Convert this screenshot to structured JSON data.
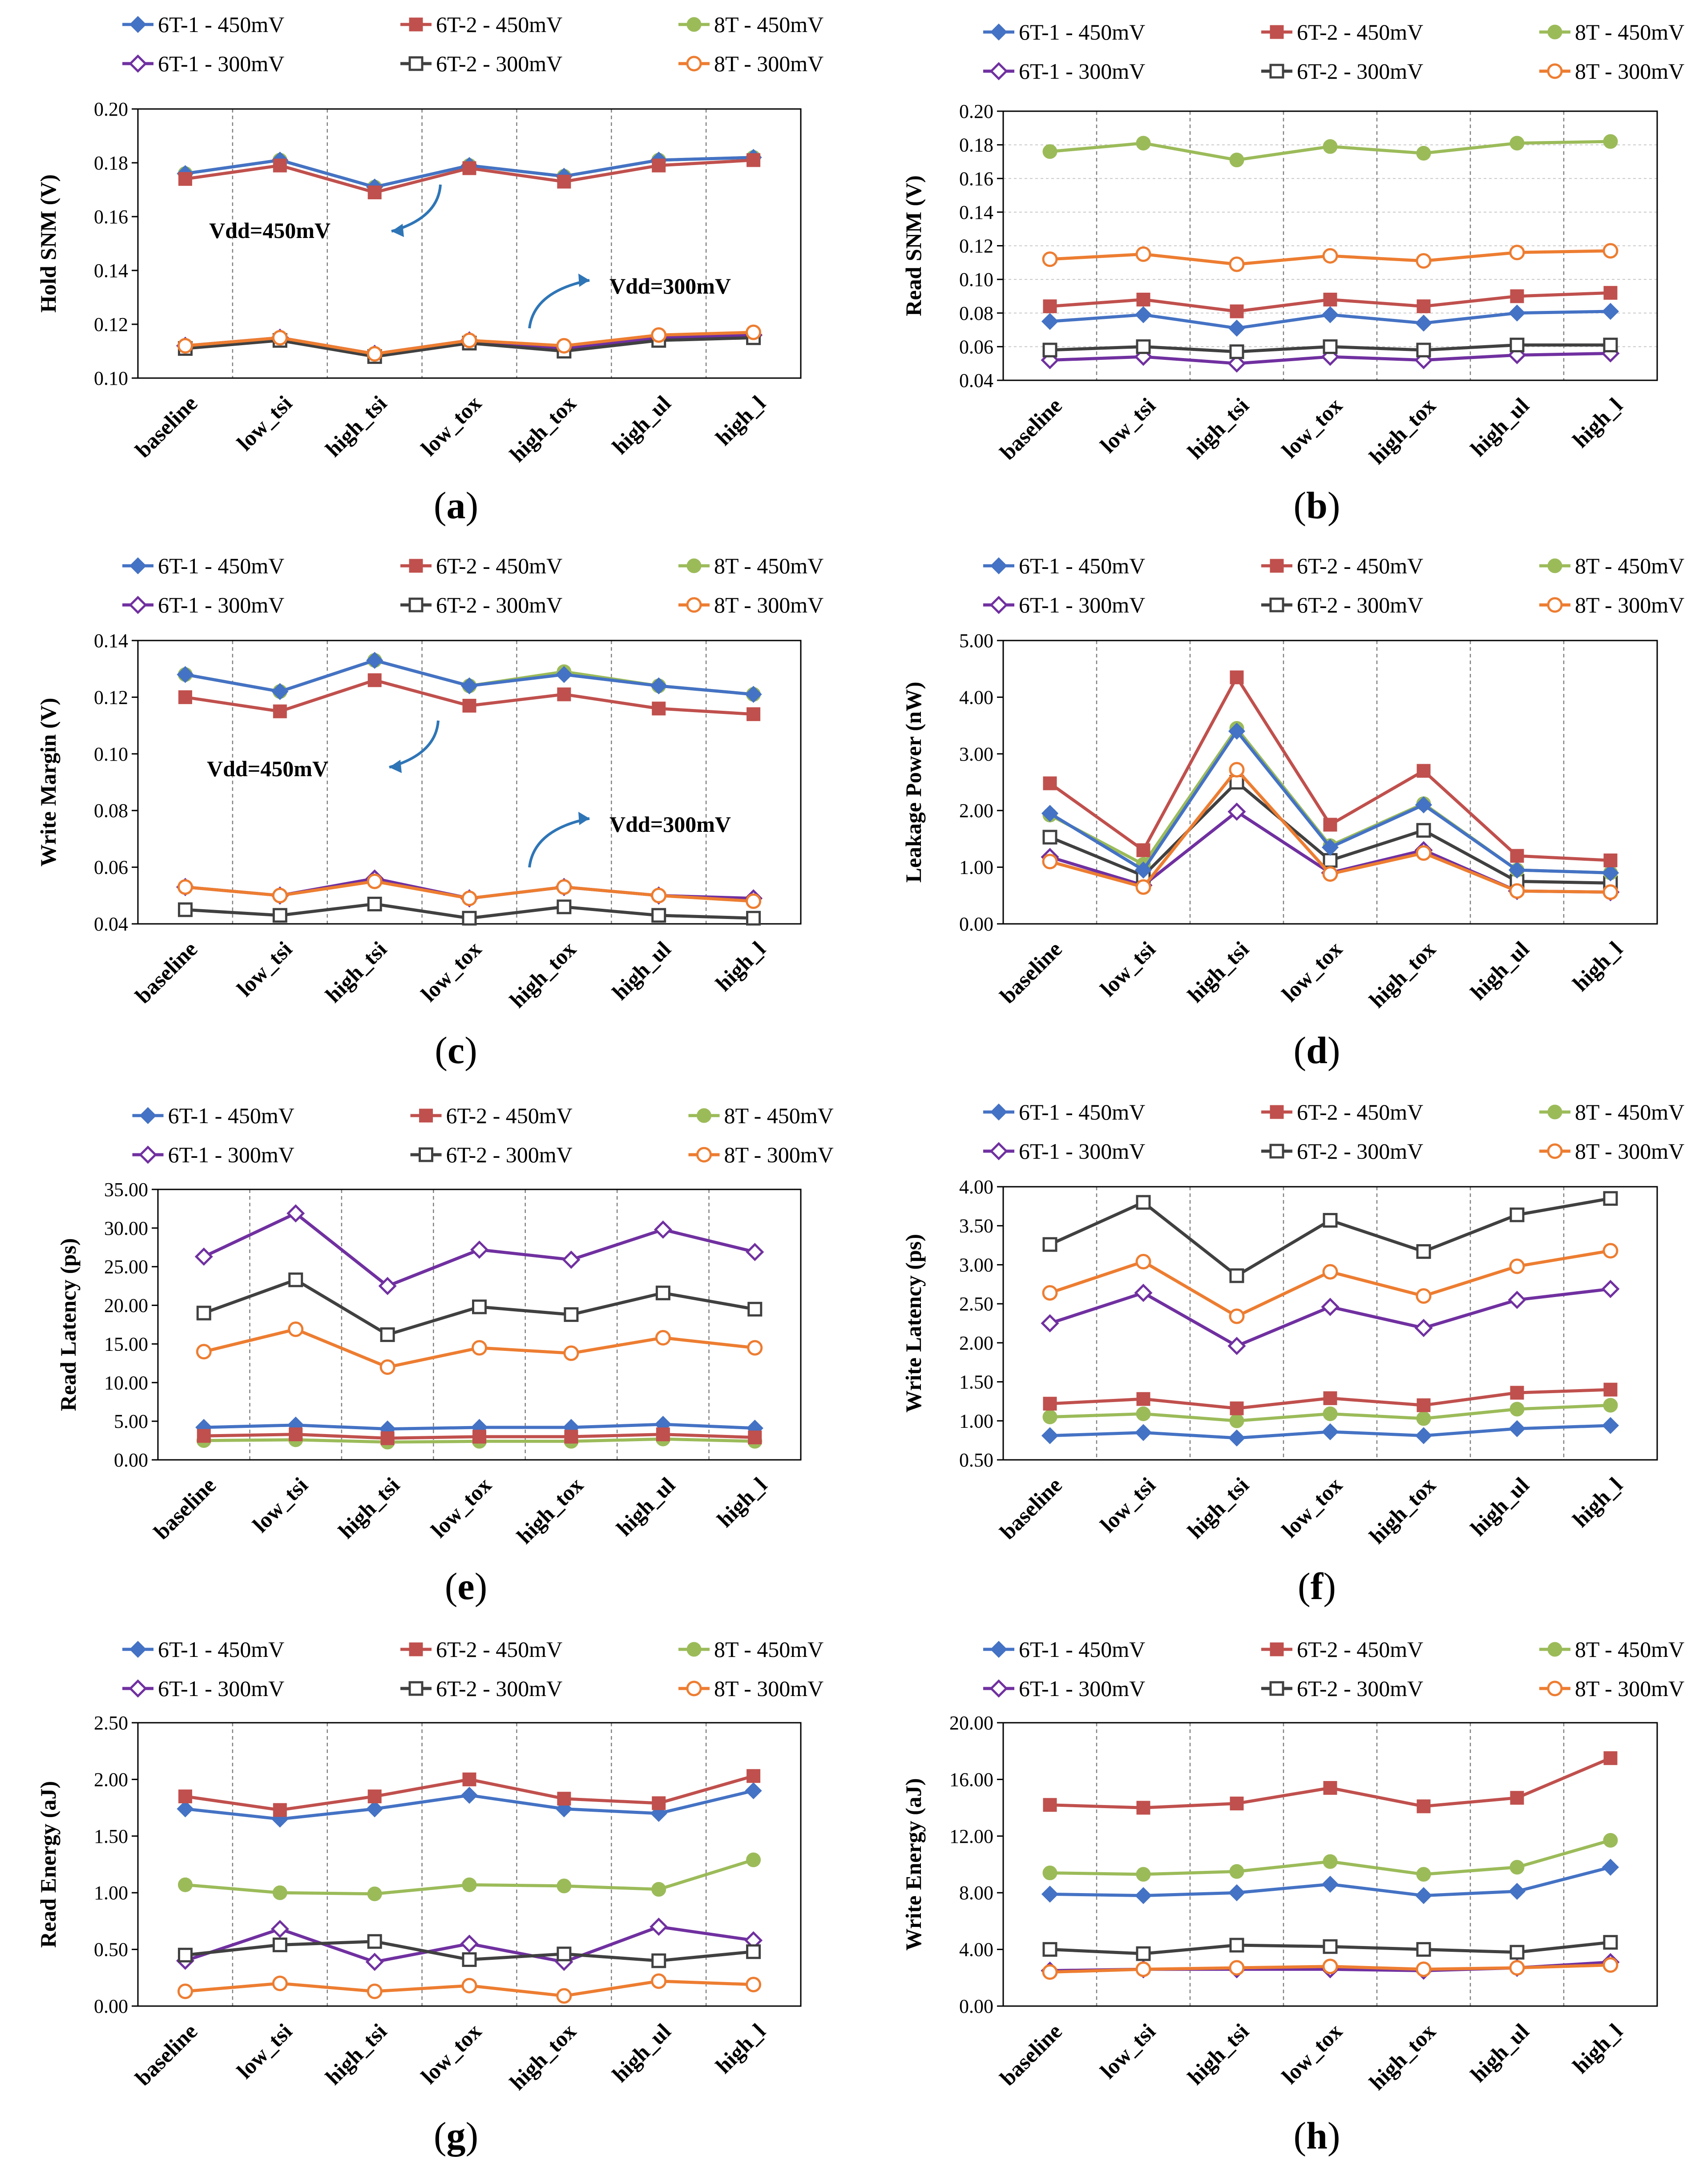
{
  "figure": {
    "series_style": [
      {
        "name": "6T-1 - 450mV",
        "color": "#4472C4",
        "marker": "diamond-filled"
      },
      {
        "name": "6T-2 - 450mV",
        "color": "#C0504D",
        "marker": "square-filled"
      },
      {
        "name": "8T - 450mV",
        "color": "#9BBB59",
        "marker": "circle-filled"
      },
      {
        "name": "6T-1 - 300mV",
        "color": "#7030A0",
        "marker": "diamond-open"
      },
      {
        "name": "6T-2 - 300mV",
        "color": "#404040",
        "marker": "square-open"
      },
      {
        "name": "8T - 300mV",
        "color": "#ED7D31",
        "marker": "circle-open"
      }
    ]
  },
  "chart_data": [
    {
      "panel": "a",
      "type": "line",
      "title": "",
      "xlabel": "",
      "ylabel": "Hold SNM (V)",
      "categories": [
        "baseline",
        "low_tsi",
        "high_tsi",
        "low_tox",
        "high_tox",
        "high_ul",
        "high_l"
      ],
      "ylim": [
        0.1,
        0.2
      ],
      "yticks": [
        0.1,
        0.12,
        0.14,
        0.16,
        0.18,
        0.2
      ],
      "ytick_labels": [
        "0.10",
        "0.12",
        "0.14",
        "0.16",
        "0.18",
        "0.20"
      ],
      "grid": "vertical dashed",
      "legend": "top",
      "annotations": [
        "Vdd=450mV",
        "Vdd=300mV"
      ],
      "series": [
        {
          "name": "6T-1 - 450mV",
          "values": [
            0.176,
            0.181,
            0.171,
            0.179,
            0.175,
            0.181,
            0.182
          ]
        },
        {
          "name": "6T-2 - 450mV",
          "values": [
            0.174,
            0.179,
            0.169,
            0.178,
            0.173,
            0.179,
            0.181
          ]
        },
        {
          "name": "8T - 450mV",
          "values": [
            0.176,
            0.181,
            0.171,
            0.179,
            0.175,
            0.181,
            0.182
          ]
        },
        {
          "name": "6T-1 - 300mV",
          "values": [
            0.112,
            0.115,
            0.109,
            0.114,
            0.111,
            0.115,
            0.116
          ]
        },
        {
          "name": "6T-2 - 300mV",
          "values": [
            0.111,
            0.114,
            0.108,
            0.113,
            0.11,
            0.114,
            0.115
          ]
        },
        {
          "name": "8T - 300mV",
          "values": [
            0.112,
            0.115,
            0.109,
            0.114,
            0.112,
            0.116,
            0.117
          ]
        }
      ]
    },
    {
      "panel": "b",
      "type": "line",
      "title": "",
      "xlabel": "",
      "ylabel": "Read SNM (V)",
      "categories": [
        "baseline",
        "low_tsi",
        "high_tsi",
        "low_tox",
        "high_tox",
        "high_ul",
        "high_l"
      ],
      "ylim": [
        0.04,
        0.2
      ],
      "yticks": [
        0.04,
        0.06,
        0.08,
        0.1,
        0.12,
        0.14,
        0.16,
        0.18,
        0.2
      ],
      "ytick_labels": [
        "0.04",
        "0.06",
        "0.08",
        "0.10",
        "0.12",
        "0.14",
        "0.16",
        "0.18",
        "0.20"
      ],
      "grid": "horizontal and vertical dashed",
      "legend": "top",
      "series": [
        {
          "name": "6T-1 - 450mV",
          "values": [
            0.075,
            0.079,
            0.071,
            0.079,
            0.074,
            0.08,
            0.081
          ]
        },
        {
          "name": "6T-2 - 450mV",
          "values": [
            0.084,
            0.088,
            0.081,
            0.088,
            0.084,
            0.09,
            0.092
          ]
        },
        {
          "name": "8T - 450mV",
          "values": [
            0.176,
            0.181,
            0.171,
            0.179,
            0.175,
            0.181,
            0.182
          ]
        },
        {
          "name": "6T-1 - 300mV",
          "values": [
            0.052,
            0.054,
            0.05,
            0.054,
            0.052,
            0.055,
            0.056
          ]
        },
        {
          "name": "6T-2 - 300mV",
          "values": [
            0.058,
            0.06,
            0.057,
            0.06,
            0.058,
            0.061,
            0.061
          ]
        },
        {
          "name": "8T - 300mV",
          "values": [
            0.112,
            0.115,
            0.109,
            0.114,
            0.111,
            0.116,
            0.117
          ]
        }
      ]
    },
    {
      "panel": "c",
      "type": "line",
      "title": "",
      "xlabel": "",
      "ylabel": "Write Margin (V)",
      "categories": [
        "baseline",
        "low_tsi",
        "high_tsi",
        "low_tox",
        "high_tox",
        "high_ul",
        "high_l"
      ],
      "ylim": [
        0.04,
        0.14
      ],
      "yticks": [
        0.04,
        0.06,
        0.08,
        0.1,
        0.12,
        0.14
      ],
      "ytick_labels": [
        "0.04",
        "0.06",
        "0.08",
        "0.10",
        "0.12",
        "0.14"
      ],
      "grid": "vertical dashed",
      "legend": "top",
      "annotations": [
        "Vdd=450mV",
        "Vdd=300mV"
      ],
      "series": [
        {
          "name": "6T-1 - 450mV",
          "values": [
            0.128,
            0.122,
            0.133,
            0.124,
            0.128,
            0.124,
            0.121
          ]
        },
        {
          "name": "6T-2 - 450mV",
          "values": [
            0.12,
            0.115,
            0.126,
            0.117,
            0.121,
            0.116,
            0.114
          ]
        },
        {
          "name": "8T - 450mV",
          "values": [
            0.128,
            0.122,
            0.133,
            0.124,
            0.129,
            0.124,
            0.121
          ]
        },
        {
          "name": "6T-1 - 300mV",
          "values": [
            0.053,
            0.05,
            0.056,
            0.049,
            0.053,
            0.05,
            0.049
          ]
        },
        {
          "name": "6T-2 - 300mV",
          "values": [
            0.045,
            0.043,
            0.047,
            0.042,
            0.046,
            0.043,
            0.042
          ]
        },
        {
          "name": "8T - 300mV",
          "values": [
            0.053,
            0.05,
            0.055,
            0.049,
            0.053,
            0.05,
            0.048
          ]
        }
      ]
    },
    {
      "panel": "d",
      "type": "line",
      "title": "",
      "xlabel": "",
      "ylabel": "Leakage Power (nW)",
      "categories": [
        "baseline",
        "low_tsi",
        "high_tsi",
        "low_tox",
        "high_tox",
        "high_ul",
        "high_l"
      ],
      "ylim": [
        0,
        5
      ],
      "yticks": [
        0,
        1,
        2,
        3,
        4,
        5
      ],
      "ytick_labels": [
        "0.00",
        "1.00",
        "2.00",
        "3.00",
        "4.00",
        "5.00"
      ],
      "grid": "vertical dashed",
      "legend": "top",
      "series": [
        {
          "name": "6T-1 - 450mV",
          "values": [
            1.95,
            0.95,
            3.4,
            1.35,
            2.1,
            0.95,
            0.9
          ]
        },
        {
          "name": "6T-2 - 450mV",
          "values": [
            2.48,
            1.3,
            4.35,
            1.75,
            2.7,
            1.2,
            1.12
          ]
        },
        {
          "name": "8T - 450mV",
          "values": [
            1.92,
            1.05,
            3.45,
            1.38,
            2.12,
            0.95,
            0.9
          ]
        },
        {
          "name": "6T-1 - 300mV",
          "values": [
            1.18,
            0.68,
            1.98,
            0.9,
            1.3,
            0.58,
            0.56
          ]
        },
        {
          "name": "6T-2 - 300mV",
          "values": [
            1.53,
            0.85,
            2.5,
            1.12,
            1.65,
            0.75,
            0.72
          ]
        },
        {
          "name": "8T - 300mV",
          "values": [
            1.1,
            0.65,
            2.72,
            0.88,
            1.25,
            0.58,
            0.56
          ]
        }
      ]
    },
    {
      "panel": "e",
      "type": "line",
      "title": "",
      "xlabel": "",
      "ylabel": "Read Latency (ps)",
      "categories": [
        "baseline",
        "low_tsi",
        "high_tsi",
        "low_tox",
        "high_tox",
        "high_ul",
        "high_l"
      ],
      "ylim": [
        0,
        35
      ],
      "yticks": [
        0,
        5,
        10,
        15,
        20,
        25,
        30,
        35
      ],
      "ytick_labels": [
        "0.00",
        "5.00",
        "10.00",
        "15.00",
        "20.00",
        "25.00",
        "30.00",
        "35.00"
      ],
      "grid": "vertical dashed",
      "legend": "top",
      "series": [
        {
          "name": "6T-1 - 450mV",
          "values": [
            4.2,
            4.5,
            4.0,
            4.2,
            4.2,
            4.6,
            4.1
          ]
        },
        {
          "name": "6T-2 - 450mV",
          "values": [
            3.1,
            3.3,
            2.8,
            3.0,
            3.0,
            3.3,
            2.9
          ]
        },
        {
          "name": "8T - 450mV",
          "values": [
            2.5,
            2.6,
            2.3,
            2.4,
            2.4,
            2.7,
            2.4
          ]
        },
        {
          "name": "6T-1 - 300mV",
          "values": [
            26.3,
            31.9,
            22.5,
            27.2,
            25.9,
            29.8,
            26.9
          ]
        },
        {
          "name": "6T-2 - 300mV",
          "values": [
            19.0,
            23.3,
            16.2,
            19.8,
            18.8,
            21.6,
            19.5
          ]
        },
        {
          "name": "8T - 300mV",
          "values": [
            14.0,
            16.9,
            12.0,
            14.5,
            13.8,
            15.8,
            14.5
          ]
        }
      ]
    },
    {
      "panel": "f",
      "type": "line",
      "title": "",
      "xlabel": "",
      "ylabel": "Write Latency (ps)",
      "categories": [
        "baseline",
        "low_tsi",
        "high_tsi",
        "low_tox",
        "high_tox",
        "high_ul",
        "high_l"
      ],
      "ylim": [
        0.5,
        4.0
      ],
      "yticks": [
        0.5,
        1.0,
        1.5,
        2.0,
        2.5,
        3.0,
        3.5,
        4.0
      ],
      "ytick_labels": [
        "0.50",
        "1.00",
        "1.50",
        "2.00",
        "2.50",
        "3.00",
        "3.50",
        "4.00"
      ],
      "grid": "vertical dashed",
      "legend": "top",
      "series": [
        {
          "name": "6T-1 - 450mV",
          "values": [
            0.81,
            0.85,
            0.78,
            0.86,
            0.81,
            0.9,
            0.94
          ]
        },
        {
          "name": "6T-2 - 450mV",
          "values": [
            1.22,
            1.28,
            1.16,
            1.29,
            1.2,
            1.36,
            1.4
          ]
        },
        {
          "name": "8T - 450mV",
          "values": [
            1.05,
            1.09,
            1.0,
            1.09,
            1.03,
            1.15,
            1.2
          ]
        },
        {
          "name": "6T-1 - 300mV",
          "values": [
            2.25,
            2.64,
            1.96,
            2.46,
            2.19,
            2.55,
            2.69
          ]
        },
        {
          "name": "6T-2 - 300mV",
          "values": [
            3.26,
            3.8,
            2.86,
            3.57,
            3.17,
            3.64,
            3.85
          ]
        },
        {
          "name": "8T - 300mV",
          "values": [
            2.64,
            3.04,
            2.34,
            2.91,
            2.6,
            2.98,
            3.18
          ]
        }
      ]
    },
    {
      "panel": "g",
      "type": "line",
      "title": "",
      "xlabel": "",
      "ylabel": "Read Energy (aJ)",
      "categories": [
        "baseline",
        "low_tsi",
        "high_tsi",
        "low_tox",
        "high_tox",
        "high_ul",
        "high_l"
      ],
      "ylim": [
        0,
        2.5
      ],
      "yticks": [
        0,
        0.5,
        1.0,
        1.5,
        2.0,
        2.5
      ],
      "ytick_labels": [
        "0.00",
        "0.50",
        "1.00",
        "1.50",
        "2.00",
        "2.50"
      ],
      "grid": "vertical dashed",
      "legend": "top",
      "series": [
        {
          "name": "6T-1 - 450mV",
          "values": [
            1.74,
            1.65,
            1.74,
            1.86,
            1.74,
            1.7,
            1.9
          ]
        },
        {
          "name": "6T-2 - 450mV",
          "values": [
            1.85,
            1.73,
            1.85,
            2.0,
            1.83,
            1.79,
            2.03
          ]
        },
        {
          "name": "8T - 450mV",
          "values": [
            1.07,
            1.0,
            0.99,
            1.07,
            1.06,
            1.03,
            1.29
          ]
        },
        {
          "name": "6T-1 - 300mV",
          "values": [
            0.4,
            0.68,
            0.39,
            0.55,
            0.39,
            0.7,
            0.58
          ]
        },
        {
          "name": "6T-2 - 300mV",
          "values": [
            0.45,
            0.54,
            0.57,
            0.41,
            0.46,
            0.4,
            0.48
          ]
        },
        {
          "name": "8T - 300mV",
          "values": [
            0.13,
            0.2,
            0.13,
            0.18,
            0.09,
            0.22,
            0.19
          ]
        }
      ]
    },
    {
      "panel": "h",
      "type": "line",
      "title": "",
      "xlabel": "",
      "ylabel": "Write Energy (aJ)",
      "categories": [
        "baseline",
        "low_tsi",
        "high_tsi",
        "low_tox",
        "high_tox",
        "high_ul",
        "high_l"
      ],
      "ylim": [
        0,
        20
      ],
      "yticks": [
        0,
        4,
        8,
        12,
        16,
        20
      ],
      "ytick_labels": [
        "0.00",
        "4.00",
        "8.00",
        "12.00",
        "16.00",
        "20.00"
      ],
      "grid": "vertical dashed",
      "legend": "top",
      "series": [
        {
          "name": "6T-1 - 450mV",
          "values": [
            7.9,
            7.8,
            8.0,
            8.6,
            7.8,
            8.1,
            9.8
          ]
        },
        {
          "name": "6T-2 - 450mV",
          "values": [
            14.2,
            14.0,
            14.3,
            15.4,
            14.1,
            14.7,
            17.5
          ]
        },
        {
          "name": "8T - 450mV",
          "values": [
            9.4,
            9.3,
            9.5,
            10.2,
            9.3,
            9.8,
            11.7
          ]
        },
        {
          "name": "6T-1 - 300mV",
          "values": [
            2.5,
            2.6,
            2.6,
            2.6,
            2.5,
            2.7,
            3.1
          ]
        },
        {
          "name": "6T-2 - 300mV",
          "values": [
            4.0,
            3.7,
            4.3,
            4.2,
            4.0,
            3.8,
            4.5
          ]
        },
        {
          "name": "8T - 300mV",
          "values": [
            2.4,
            2.6,
            2.7,
            2.8,
            2.6,
            2.7,
            2.9
          ]
        }
      ]
    }
  ]
}
